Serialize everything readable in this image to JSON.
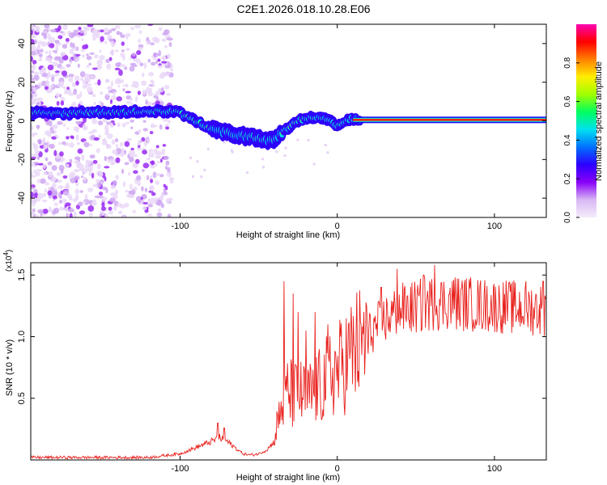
{
  "title": "C2E1.2026.018.10.28.E06",
  "chart_data": [
    {
      "type": "heatmap",
      "xlabel": "Height of straight line (km)",
      "ylabel": "Frequency (Hz)",
      "xlim": [
        -195,
        133
      ],
      "ylim": [
        -50,
        50
      ],
      "xticks": [
        -100,
        0,
        100
      ],
      "xtick_labels": [
        "-100",
        "0",
        "100"
      ],
      "yticks": [
        -40,
        -20,
        0,
        20,
        40
      ],
      "ytick_labels": [
        "-40",
        "-20",
        "0",
        "20",
        "40"
      ],
      "colorbar": {
        "label": "Normalized spectral amplitude",
        "range": [
          0,
          1
        ],
        "ticks": [
          0,
          0.2,
          0.4,
          0.6,
          0.8
        ],
        "tick_labels": [
          "0.0",
          "0.2",
          "0.4",
          "0.6",
          "0.8"
        ],
        "colors": [
          "#f4ecfa",
          "#d8b8f4",
          "#8a00f8",
          "#2c00ff",
          "#0070ff",
          "#00e0f0",
          "#00ff60",
          "#a0ff00",
          "#ffee00",
          "#ff8000",
          "#ff0000",
          "#ff00b0"
        ]
      },
      "ridge": {
        "x": [
          -195,
          -170,
          -150,
          -130,
          -115,
          -105,
          -100,
          -95,
          -90,
          -85,
          -80,
          -75,
          -70,
          -65,
          -60,
          -55,
          -50,
          -45,
          -40,
          -35,
          -30,
          -25,
          -20,
          -15,
          -10,
          -5,
          0,
          5,
          10,
          15,
          133
        ],
        "y": [
          4,
          4,
          4.5,
          4.5,
          5,
          5,
          4,
          2,
          0,
          -2,
          -4,
          -5,
          -6,
          -7,
          -8,
          -8,
          -9,
          -10,
          -10,
          -6,
          -3,
          0,
          1,
          2,
          2,
          0,
          -2,
          0,
          1,
          0.5,
          0.5
        ]
      }
    },
    {
      "type": "line",
      "xlabel": "Height of straight line (km)",
      "ylabel": "SNR (10 * v/v)",
      "y_scale_label": "(x10",
      "y_scale_exponent": "4",
      "y_scale_suffix": ")",
      "xlim": [
        -195,
        133
      ],
      "ylim": [
        0,
        1.6
      ],
      "xticks": [
        -100,
        0,
        100
      ],
      "xtick_labels": [
        "-100",
        "0",
        "100"
      ],
      "yticks": [
        0.5,
        1.0,
        1.5
      ],
      "ytick_labels": [
        "0.5",
        "1.0",
        "1.5"
      ],
      "series": [
        {
          "name": "SNR",
          "color": "#e8201c",
          "envelope_x": [
            -195,
            -160,
            -120,
            -100,
            -90,
            -80,
            -75,
            -70,
            -65,
            -60,
            -55,
            -50,
            -45,
            -40,
            -38,
            -35,
            -32,
            -30,
            -28,
            -25,
            -20,
            -15,
            -10,
            -5,
            0,
            5,
            10,
            15,
            20,
            25,
            30,
            35,
            40,
            50,
            60,
            70,
            80,
            90,
            100,
            110,
            120,
            133
          ],
          "envelope_y": [
            0.02,
            0.02,
            0.02,
            0.05,
            0.1,
            0.15,
            0.18,
            0.15,
            0.1,
            0.05,
            0.04,
            0.05,
            0.08,
            0.15,
            0.3,
            0.45,
            0.55,
            0.55,
            0.5,
            0.55,
            0.5,
            0.55,
            0.6,
            0.7,
            0.72,
            0.8,
            0.88,
            0.95,
            1.02,
            1.08,
            1.14,
            1.18,
            1.22,
            1.24,
            1.27,
            1.28,
            1.27,
            1.26,
            1.25,
            1.24,
            1.23,
            1.22
          ],
          "spikes": [
            [
              -76,
              0.3
            ],
            [
              -72,
              0.26
            ],
            [
              -34,
              1.45
            ],
            [
              -28,
              1.35
            ],
            [
              -25,
              1.2
            ],
            [
              -20,
              1.05
            ],
            [
              -14,
              1.2
            ],
            [
              -6,
              1.1
            ],
            [
              2,
              1.0
            ],
            [
              15,
              1.1
            ],
            [
              28,
              1.4
            ],
            [
              38,
              1.55
            ],
            [
              55,
              1.5
            ],
            [
              62,
              1.58
            ],
            [
              75,
              1.48
            ],
            [
              120,
              1.45
            ],
            [
              131,
              1.45
            ]
          ]
        }
      ]
    }
  ]
}
